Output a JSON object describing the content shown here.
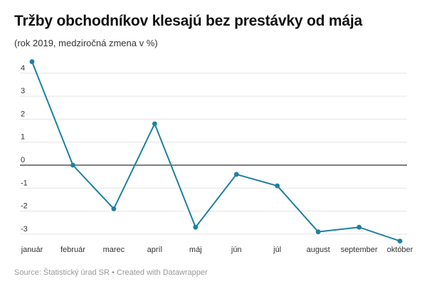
{
  "header": {
    "title": "Tržby obchodníkov klesajú bez prestávky od mája",
    "subtitle": "(rok 2019, medziročná zmena v %)"
  },
  "footer": {
    "source_label": "Source:",
    "source": "Štatistický úrad SR",
    "separator": "•",
    "credit": "Created with Datawrapper"
  },
  "colors": {
    "line": "#1d81a2",
    "grid": "#e3e3e3",
    "zero_line": "#333333"
  },
  "chart_data": {
    "type": "line",
    "title": "Tržby obchodníkov klesajú bez prestávky od mája",
    "subtitle": "(rok 2019, medziročná zmena v %)",
    "categories": [
      "január",
      "február",
      "marec",
      "apríl",
      "máj",
      "jún",
      "júl",
      "august",
      "september",
      "október"
    ],
    "series": [
      {
        "values": [
          4.5,
          0.0,
          -1.9,
          1.8,
          -2.7,
          -0.4,
          -0.9,
          -2.9,
          -2.7,
          -3.3
        ]
      }
    ],
    "y_ticks": [
      4,
      3,
      2,
      1,
      0,
      -1,
      -2,
      -3
    ],
    "ylim": [
      -3.3,
      4.5
    ],
    "grid": true,
    "markers": true
  }
}
